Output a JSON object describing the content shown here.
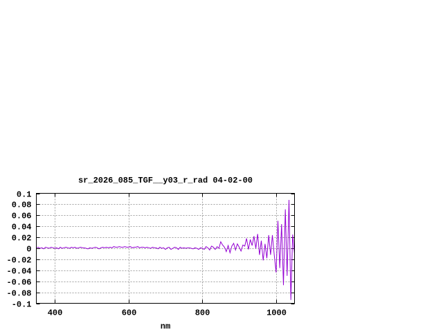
{
  "chart_data": {
    "type": "line",
    "title": "sr_2026_085_TGF__y03_r_rad 04-02-00",
    "xlabel": "nm",
    "ylabel": "",
    "xlim": [
      350,
      1050
    ],
    "ylim": [
      -0.1,
      0.1
    ],
    "xticks": [
      "400",
      "600",
      "800",
      "1000"
    ],
    "xtick_values": [
      400,
      600,
      800,
      1000
    ],
    "yticks": [
      "0.1",
      "0.08",
      "0.06",
      "0.04",
      "0.02",
      "0",
      "-0.02",
      "-0.04",
      "-0.06",
      "-0.08",
      "-0.1"
    ],
    "ytick_values": [
      0.1,
      0.08,
      0.06,
      0.04,
      0.02,
      0,
      -0.02,
      -0.04,
      -0.06,
      -0.08,
      -0.1
    ],
    "grid": true,
    "line_color": "#9400d3",
    "series": [
      {
        "x_start": 350,
        "x_step": 5,
        "values": [
          0.001,
          0.002,
          0.0,
          0.001,
          -0.001,
          0.002,
          0.001,
          0.0,
          0.002,
          0.001,
          0.0,
          0.001,
          -0.001,
          0.002,
          0.0,
          0.001,
          0.002,
          0.001,
          0.0,
          0.002,
          0.001,
          0.002,
          0.0,
          0.001,
          0.002,
          0.001,
          0.001,
          0.0,
          -0.001,
          0.001,
          0.0,
          0.001,
          0.002,
          0.001,
          -0.001,
          0.001,
          0.002,
          0.001,
          0.002,
          0.001,
          0.002,
          0.001,
          0.003,
          0.002,
          0.002,
          0.003,
          0.002,
          0.002,
          0.003,
          0.002,
          0.002,
          0.003,
          0.001,
          0.002,
          0.002,
          0.003,
          0.001,
          0.002,
          0.002,
          0.001,
          0.002,
          0.001,
          0.0,
          0.002,
          0.001,
          0.001,
          -0.001,
          0.002,
          0.0,
          0.001,
          -0.002,
          0.001,
          0.002,
          -0.002,
          0.0,
          0.002,
          0.001,
          -0.002,
          0.002,
          0.0,
          0.001,
          0.0,
          0.001,
          0.001,
          0.0,
          -0.001,
          0.001,
          0.0,
          -0.002,
          0.001,
          0.0,
          -0.002,
          0.003,
          0.001,
          -0.003,
          0.004,
          0.002,
          -0.002,
          0.003,
          0.0,
          0.012,
          0.006,
          0.002,
          -0.006,
          0.005,
          -0.008,
          0.004,
          0.009,
          -0.003,
          0.008,
          0.002,
          -0.005,
          0.006,
          0.004,
          0.018,
          -0.002,
          0.016,
          0.005,
          0.022,
          0.0,
          0.026,
          -0.012,
          0.014,
          -0.022,
          0.008,
          -0.018,
          0.024,
          -0.012,
          0.024,
          -0.012,
          -0.044,
          0.05,
          -0.036,
          0.044,
          -0.067,
          0.071,
          -0.05,
          0.088,
          -0.094,
          0.025,
          -0.01
        ]
      }
    ]
  }
}
